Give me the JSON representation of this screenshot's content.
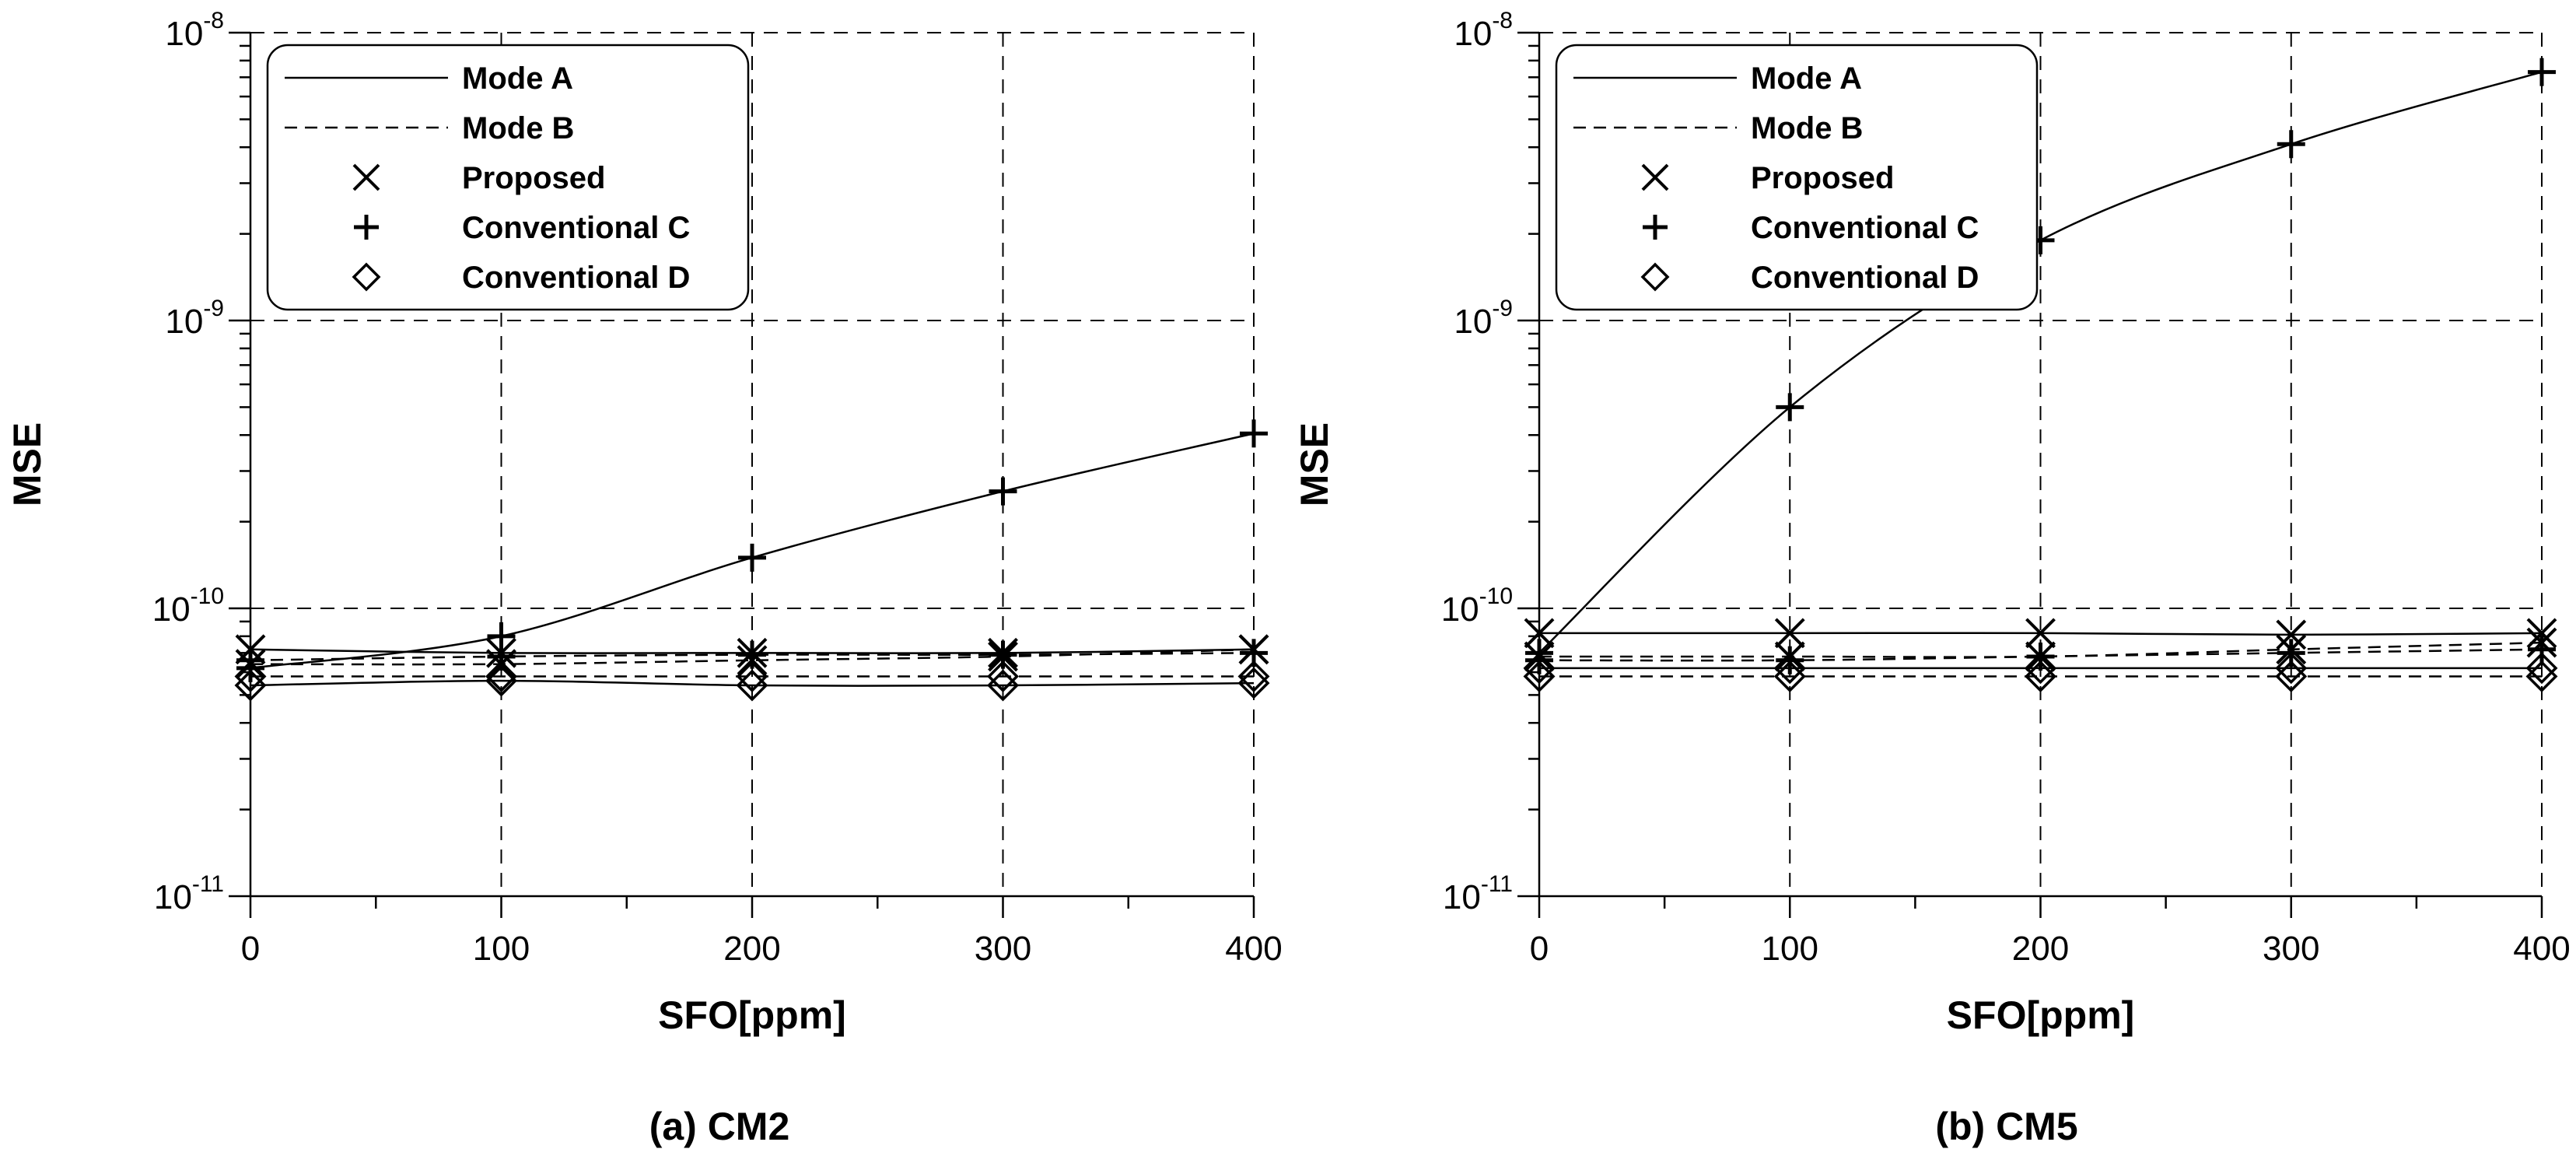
{
  "chart_data": [
    {
      "type": "line",
      "caption": "(a) CM2",
      "xlabel": "SFO[ppm]",
      "ylabel": "MSE",
      "yscale": "log",
      "xlim": [
        0,
        400
      ],
      "ylim": [
        1e-11,
        1e-08
      ],
      "x_ticks": [
        "0",
        "100",
        "200",
        "300",
        "400"
      ],
      "y_ticks": [
        {
          "base": "10",
          "exp": "-11",
          "value": 1e-11
        },
        {
          "base": "10",
          "exp": "-10",
          "value": 1e-10
        },
        {
          "base": "10",
          "exp": "-9",
          "value": 1e-09
        },
        {
          "base": "10",
          "exp": "-8",
          "value": 1e-08
        }
      ],
      "grid": true,
      "legend_position": "top-left",
      "x": [
        0,
        100,
        200,
        300,
        400
      ],
      "series": [
        {
          "name": "Proposed",
          "mode": "Mode A",
          "marker": "x",
          "values": [
            7.2e-11,
            7e-11,
            7e-11,
            7e-11,
            7.2e-11
          ]
        },
        {
          "name": "Conventional C",
          "mode": "Mode A",
          "marker": "plus",
          "values": [
            6.2e-11,
            8e-11,
            1.5e-10,
            2.55e-10,
            4.05e-10
          ]
        },
        {
          "name": "Conventional D",
          "mode": "Mode A",
          "marker": "diamond",
          "values": [
            5.4e-11,
            5.6e-11,
            5.4e-11,
            5.4e-11,
            5.5e-11
          ]
        },
        {
          "name": "Proposed",
          "mode": "Mode B",
          "marker": "x",
          "values": [
            6.4e-11,
            6.4e-11,
            6.6e-11,
            6.8e-11,
            7.2e-11
          ]
        },
        {
          "name": "Conventional C",
          "mode": "Mode B",
          "marker": "plus",
          "values": [
            6.6e-11,
            6.8e-11,
            6.9e-11,
            6.9e-11,
            7e-11
          ]
        },
        {
          "name": "Conventional D",
          "mode": "Mode B",
          "marker": "diamond",
          "values": [
            5.8e-11,
            5.8e-11,
            5.8e-11,
            5.8e-11,
            5.8e-11
          ]
        }
      ],
      "legend": [
        {
          "label": "Mode A",
          "symbol": "solid-line"
        },
        {
          "label": "Mode B",
          "symbol": "dashed-line"
        },
        {
          "label": "Proposed",
          "symbol": "x"
        },
        {
          "label": "Conventional C",
          "symbol": "plus"
        },
        {
          "label": "Conventional D",
          "symbol": "diamond"
        }
      ]
    },
    {
      "type": "line",
      "caption": "(b) CM5",
      "xlabel": "SFO[ppm]",
      "ylabel": "MSE",
      "yscale": "log",
      "xlim": [
        0,
        400
      ],
      "ylim": [
        1e-11,
        1e-08
      ],
      "x_ticks": [
        "0",
        "100",
        "200",
        "300",
        "400"
      ],
      "y_ticks": [
        {
          "base": "10",
          "exp": "-11",
          "value": 1e-11
        },
        {
          "base": "10",
          "exp": "-10",
          "value": 1e-10
        },
        {
          "base": "10",
          "exp": "-9",
          "value": 1e-09
        },
        {
          "base": "10",
          "exp": "-8",
          "value": 1e-08
        }
      ],
      "grid": true,
      "legend_position": "top-left",
      "x": [
        0,
        100,
        200,
        300,
        400
      ],
      "series": [
        {
          "name": "Proposed",
          "mode": "Mode A",
          "marker": "x",
          "values": [
            8.2e-11,
            8.2e-11,
            8.2e-11,
            8.1e-11,
            8.2e-11
          ]
        },
        {
          "name": "Conventional C",
          "mode": "Mode A",
          "marker": "plus",
          "values": [
            7e-11,
            5e-10,
            1.9e-09,
            4.1e-09,
            7.3e-09
          ]
        },
        {
          "name": "Conventional D",
          "mode": "Mode A",
          "marker": "diamond",
          "values": [
            6.2e-11,
            6.2e-11,
            6.2e-11,
            6.2e-11,
            6.2e-11
          ]
        },
        {
          "name": "Proposed",
          "mode": "Mode B",
          "marker": "x",
          "values": [
            6.8e-11,
            6.8e-11,
            6.8e-11,
            7.2e-11,
            7.6e-11
          ]
        },
        {
          "name": "Conventional C",
          "mode": "Mode B",
          "marker": "plus",
          "values": [
            6.6e-11,
            6.6e-11,
            6.8e-11,
            7e-11,
            7.2e-11
          ]
        },
        {
          "name": "Conventional D",
          "mode": "Mode B",
          "marker": "diamond",
          "values": [
            5.8e-11,
            5.8e-11,
            5.8e-11,
            5.8e-11,
            5.8e-11
          ]
        }
      ],
      "legend": [
        {
          "label": "Mode A",
          "symbol": "solid-line"
        },
        {
          "label": "Mode B",
          "symbol": "dashed-line"
        },
        {
          "label": "Proposed",
          "symbol": "x"
        },
        {
          "label": "Conventional C",
          "symbol": "plus"
        },
        {
          "label": "Conventional D",
          "symbol": "diamond"
        }
      ]
    }
  ]
}
